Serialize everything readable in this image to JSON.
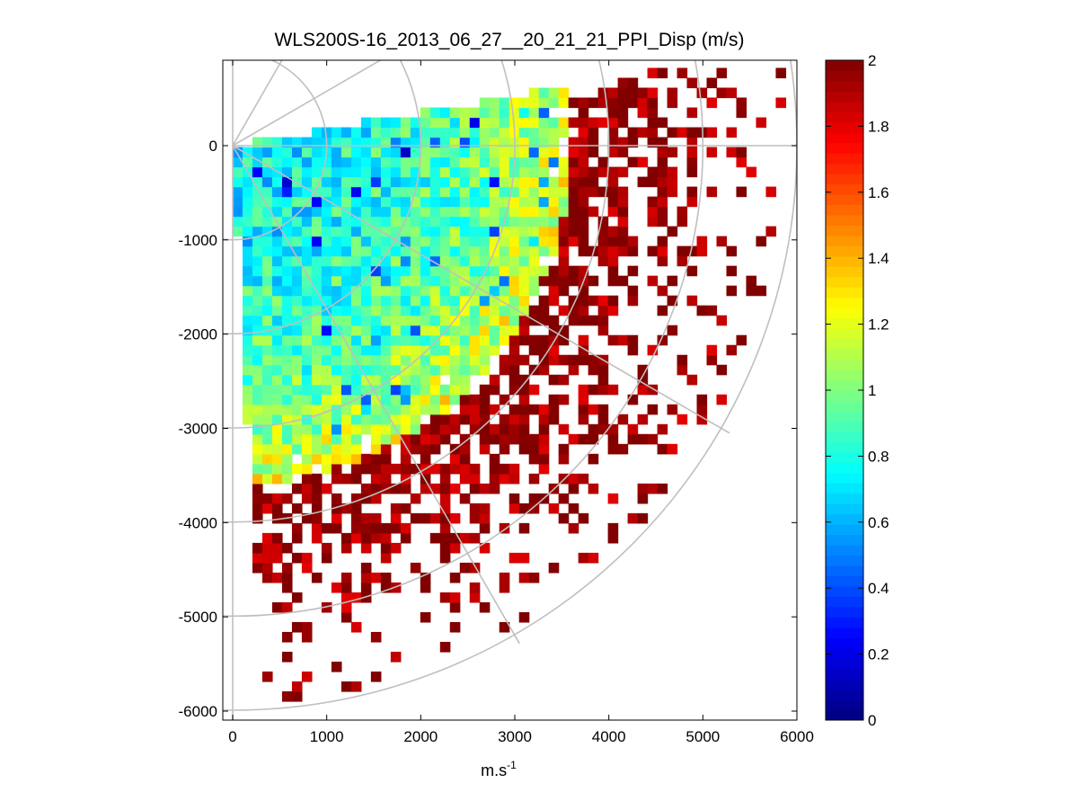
{
  "chart_data": {
    "type": "heatmap",
    "title": "WLS200S-16_2013_06_27__20_21_21_PPI_Disp (m/s)",
    "xlabel_main": "m.s",
    "xlabel_sup": "-1",
    "ylabel": "",
    "xlim": [
      -100,
      6000
    ],
    "ylim": [
      -6100,
      900
    ],
    "x_ticks": [
      "0",
      "1000",
      "2000",
      "3000",
      "4000",
      "5000",
      "6000"
    ],
    "y_ticks": [
      "0",
      "-1000",
      "-2000",
      "-3000",
      "-4000",
      "-5000",
      "-6000"
    ],
    "colorbar": {
      "colormap": "jet",
      "range": [
        0,
        2
      ],
      "ticks": [
        "0",
        "0.2",
        "0.4",
        "0.6",
        "0.8",
        "1",
        "1.2",
        "1.4",
        "1.6",
        "1.8",
        "2"
      ]
    },
    "grid": "polar",
    "polar_grid": {
      "ring_radii_m": [
        1000,
        2000,
        3000,
        4000,
        5000,
        6000
      ],
      "spoke_angles_deg": [
        90,
        60,
        30,
        0,
        -30,
        -60,
        -90
      ]
    },
    "sector": {
      "azimuth_deg": [
        -90,
        10
      ],
      "range_m": [
        0,
        6000
      ],
      "description": "PPI scan sector: dispersion low (~0.8) near lidar, saturating to 2 m/s beyond ~3500 m"
    },
    "colors": {
      "grid_line": "#bfbfbf",
      "max_color": "#800000",
      "min_color": "#00008f"
    }
  }
}
